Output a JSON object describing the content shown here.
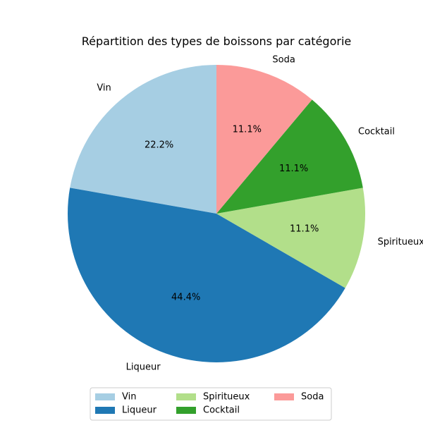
{
  "chart_data": {
    "type": "pie",
    "title": "Répartition des types de boissons par catégorie",
    "categories": [
      "Vin",
      "Liqueur",
      "Spiritueux",
      "Cocktail",
      "Soda"
    ],
    "values": [
      22.2,
      44.4,
      11.1,
      11.1,
      11.1
    ],
    "pct_labels": [
      "22.2%",
      "44.4%",
      "11.1%",
      "11.1%",
      "11.1%"
    ],
    "colors": [
      "#a6cee3",
      "#1f78b4",
      "#b2df8a",
      "#33a02c",
      "#fb9a99"
    ],
    "start_angle_deg": 90,
    "direction": "counterclockwise",
    "legend": {
      "placement": "bottom-center",
      "columns": 3
    }
  }
}
